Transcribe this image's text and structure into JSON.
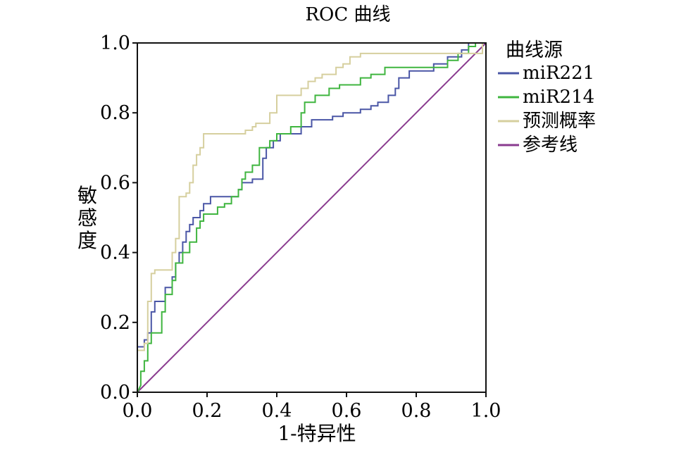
{
  "chart_data": {
    "type": "line",
    "title": "ROC 曲线",
    "xlabel": "1-特异性",
    "ylabel": "敏感度",
    "xlim": [
      0,
      1
    ],
    "ylim": [
      0,
      1
    ],
    "xticks": [
      "0.0",
      "0.2",
      "0.4",
      "0.6",
      "0.8",
      "1.0"
    ],
    "yticks": [
      "0.0",
      "0.2",
      "0.4",
      "0.6",
      "0.8",
      "1.0"
    ],
    "grid": false,
    "legend": {
      "title": "曲线源",
      "placement": "right"
    },
    "series": [
      {
        "name": "miR221",
        "color": "#4a56a6",
        "points": [
          [
            0,
            0
          ],
          [
            0,
            0.13
          ],
          [
            0.02,
            0.13
          ],
          [
            0.02,
            0.15
          ],
          [
            0.03,
            0.15
          ],
          [
            0.03,
            0.17
          ],
          [
            0.04,
            0.17
          ],
          [
            0.04,
            0.23
          ],
          [
            0.05,
            0.23
          ],
          [
            0.05,
            0.26
          ],
          [
            0.08,
            0.26
          ],
          [
            0.08,
            0.3
          ],
          [
            0.1,
            0.3
          ],
          [
            0.1,
            0.33
          ],
          [
            0.11,
            0.33
          ],
          [
            0.11,
            0.37
          ],
          [
            0.12,
            0.37
          ],
          [
            0.12,
            0.4
          ],
          [
            0.13,
            0.4
          ],
          [
            0.13,
            0.43
          ],
          [
            0.14,
            0.43
          ],
          [
            0.14,
            0.46
          ],
          [
            0.15,
            0.46
          ],
          [
            0.15,
            0.48
          ],
          [
            0.16,
            0.48
          ],
          [
            0.16,
            0.5
          ],
          [
            0.18,
            0.5
          ],
          [
            0.18,
            0.52
          ],
          [
            0.19,
            0.52
          ],
          [
            0.19,
            0.54
          ],
          [
            0.21,
            0.54
          ],
          [
            0.21,
            0.56
          ],
          [
            0.29,
            0.56
          ],
          [
            0.29,
            0.58
          ],
          [
            0.3,
            0.58
          ],
          [
            0.3,
            0.6
          ],
          [
            0.33,
            0.6
          ],
          [
            0.33,
            0.61
          ],
          [
            0.36,
            0.61
          ],
          [
            0.36,
            0.67
          ],
          [
            0.37,
            0.67
          ],
          [
            0.37,
            0.7
          ],
          [
            0.39,
            0.7
          ],
          [
            0.39,
            0.72
          ],
          [
            0.41,
            0.72
          ],
          [
            0.41,
            0.74
          ],
          [
            0.47,
            0.74
          ],
          [
            0.47,
            0.76
          ],
          [
            0.5,
            0.76
          ],
          [
            0.5,
            0.78
          ],
          [
            0.56,
            0.78
          ],
          [
            0.56,
            0.79
          ],
          [
            0.59,
            0.79
          ],
          [
            0.59,
            0.8
          ],
          [
            0.64,
            0.8
          ],
          [
            0.64,
            0.81
          ],
          [
            0.67,
            0.81
          ],
          [
            0.67,
            0.82
          ],
          [
            0.69,
            0.82
          ],
          [
            0.69,
            0.83
          ],
          [
            0.72,
            0.83
          ],
          [
            0.72,
            0.85
          ],
          [
            0.74,
            0.85
          ],
          [
            0.74,
            0.87
          ],
          [
            0.75,
            0.87
          ],
          [
            0.75,
            0.9
          ],
          [
            0.78,
            0.9
          ],
          [
            0.78,
            0.92
          ],
          [
            0.85,
            0.92
          ],
          [
            0.85,
            0.94
          ],
          [
            0.89,
            0.94
          ],
          [
            0.89,
            0.96
          ],
          [
            0.93,
            0.96
          ],
          [
            0.93,
            0.98
          ],
          [
            0.95,
            0.98
          ],
          [
            0.95,
            1.0
          ],
          [
            1.0,
            1.0
          ]
        ]
      },
      {
        "name": "miR214",
        "color": "#3fb53f",
        "points": [
          [
            0,
            0
          ],
          [
            0.01,
            0.02
          ],
          [
            0.01,
            0.06
          ],
          [
            0.02,
            0.06
          ],
          [
            0.02,
            0.09
          ],
          [
            0.03,
            0.09
          ],
          [
            0.03,
            0.14
          ],
          [
            0.04,
            0.14
          ],
          [
            0.04,
            0.17
          ],
          [
            0.07,
            0.17
          ],
          [
            0.07,
            0.23
          ],
          [
            0.08,
            0.23
          ],
          [
            0.08,
            0.28
          ],
          [
            0.1,
            0.28
          ],
          [
            0.1,
            0.32
          ],
          [
            0.11,
            0.32
          ],
          [
            0.11,
            0.37
          ],
          [
            0.13,
            0.37
          ],
          [
            0.13,
            0.4
          ],
          [
            0.15,
            0.4
          ],
          [
            0.15,
            0.43
          ],
          [
            0.17,
            0.43
          ],
          [
            0.17,
            0.47
          ],
          [
            0.18,
            0.47
          ],
          [
            0.18,
            0.49
          ],
          [
            0.19,
            0.49
          ],
          [
            0.19,
            0.51
          ],
          [
            0.23,
            0.51
          ],
          [
            0.23,
            0.53
          ],
          [
            0.25,
            0.53
          ],
          [
            0.25,
            0.54
          ],
          [
            0.27,
            0.54
          ],
          [
            0.27,
            0.56
          ],
          [
            0.29,
            0.56
          ],
          [
            0.29,
            0.58
          ],
          [
            0.3,
            0.58
          ],
          [
            0.3,
            0.61
          ],
          [
            0.31,
            0.61
          ],
          [
            0.31,
            0.63
          ],
          [
            0.33,
            0.63
          ],
          [
            0.33,
            0.65
          ],
          [
            0.35,
            0.65
          ],
          [
            0.35,
            0.7
          ],
          [
            0.38,
            0.7
          ],
          [
            0.38,
            0.72
          ],
          [
            0.4,
            0.72
          ],
          [
            0.4,
            0.74
          ],
          [
            0.44,
            0.74
          ],
          [
            0.44,
            0.76
          ],
          [
            0.47,
            0.76
          ],
          [
            0.47,
            0.8
          ],
          [
            0.48,
            0.8
          ],
          [
            0.48,
            0.83
          ],
          [
            0.51,
            0.83
          ],
          [
            0.51,
            0.85
          ],
          [
            0.55,
            0.85
          ],
          [
            0.55,
            0.87
          ],
          [
            0.58,
            0.87
          ],
          [
            0.58,
            0.88
          ],
          [
            0.64,
            0.88
          ],
          [
            0.64,
            0.9
          ],
          [
            0.67,
            0.9
          ],
          [
            0.67,
            0.91
          ],
          [
            0.71,
            0.91
          ],
          [
            0.71,
            0.93
          ],
          [
            0.89,
            0.93
          ],
          [
            0.89,
            0.95
          ],
          [
            0.92,
            0.95
          ],
          [
            0.92,
            0.97
          ],
          [
            0.95,
            0.97
          ],
          [
            0.95,
            0.99
          ],
          [
            0.97,
            0.99
          ],
          [
            0.97,
            1.0
          ],
          [
            1.0,
            1.0
          ]
        ]
      },
      {
        "name": "预测概率",
        "color": "#d6cf9e",
        "points": [
          [
            0,
            0
          ],
          [
            0,
            0.12
          ],
          [
            0.02,
            0.12
          ],
          [
            0.02,
            0.14
          ],
          [
            0.03,
            0.14
          ],
          [
            0.03,
            0.26
          ],
          [
            0.04,
            0.26
          ],
          [
            0.04,
            0.34
          ],
          [
            0.05,
            0.34
          ],
          [
            0.05,
            0.35
          ],
          [
            0.1,
            0.35
          ],
          [
            0.1,
            0.4
          ],
          [
            0.11,
            0.4
          ],
          [
            0.11,
            0.44
          ],
          [
            0.12,
            0.44
          ],
          [
            0.12,
            0.56
          ],
          [
            0.14,
            0.56
          ],
          [
            0.14,
            0.57
          ],
          [
            0.15,
            0.57
          ],
          [
            0.15,
            0.6
          ],
          [
            0.16,
            0.6
          ],
          [
            0.16,
            0.65
          ],
          [
            0.17,
            0.65
          ],
          [
            0.17,
            0.68
          ],
          [
            0.18,
            0.68
          ],
          [
            0.18,
            0.7
          ],
          [
            0.19,
            0.7
          ],
          [
            0.19,
            0.74
          ],
          [
            0.31,
            0.74
          ],
          [
            0.31,
            0.75
          ],
          [
            0.33,
            0.75
          ],
          [
            0.33,
            0.76
          ],
          [
            0.34,
            0.76
          ],
          [
            0.34,
            0.77
          ],
          [
            0.38,
            0.77
          ],
          [
            0.38,
            0.8
          ],
          [
            0.4,
            0.8
          ],
          [
            0.4,
            0.85
          ],
          [
            0.47,
            0.85
          ],
          [
            0.47,
            0.87
          ],
          [
            0.49,
            0.87
          ],
          [
            0.49,
            0.89
          ],
          [
            0.51,
            0.89
          ],
          [
            0.51,
            0.9
          ],
          [
            0.53,
            0.9
          ],
          [
            0.53,
            0.91
          ],
          [
            0.57,
            0.91
          ],
          [
            0.57,
            0.93
          ],
          [
            0.59,
            0.93
          ],
          [
            0.59,
            0.94
          ],
          [
            0.61,
            0.94
          ],
          [
            0.61,
            0.96
          ],
          [
            0.64,
            0.96
          ],
          [
            0.64,
            0.97
          ],
          [
            0.99,
            0.97
          ],
          [
            0.99,
            1.0
          ],
          [
            1.0,
            1.0
          ]
        ]
      },
      {
        "name": "参考线",
        "color": "#8a3b8f",
        "points": [
          [
            0,
            0
          ],
          [
            1,
            1
          ]
        ]
      }
    ]
  }
}
